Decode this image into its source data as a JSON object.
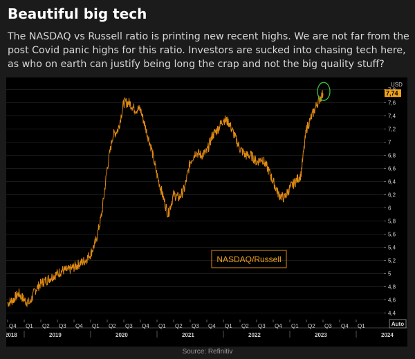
{
  "card": {
    "title": "Beautiful big tech",
    "body": "The NASDAQ vs Russell ratio is printing new recent highs. We are not far from the post Covid panic highs for this ratio. Investors are sucked into chasing tech here, as who on earth can justify being long the crap and not the big quality stuff?",
    "source": "Source: Refinitiv"
  },
  "colors": {
    "line": "#e08a12",
    "price_box": "#f0a21a",
    "circle": "#3cc43c",
    "axis_text": "#d0d0d0",
    "background": "#000000"
  },
  "chart_data": {
    "type": "line",
    "title": "",
    "currency_label": "USD",
    "scale_label": "Auto",
    "ylim": [
      4.3,
      7.9
    ],
    "y_ticks": [
      4.4,
      4.6,
      4.8,
      5,
      5.2,
      5.4,
      5.6,
      5.8,
      6,
      6.2,
      6.4,
      6.6,
      6.8,
      7,
      7.2,
      7.4,
      7.6,
      7.8
    ],
    "y_tick_labels": [
      "4,4",
      "4,6",
      "4,8",
      "5",
      "5,2",
      "5,4",
      "5,6",
      "5,8",
      "6",
      "6,2",
      "6,4",
      "6,6",
      "6,8",
      "7",
      "7,2",
      "7,4",
      "7,6",
      "7,8"
    ],
    "last_value": 7.74,
    "last_value_label": "7,74",
    "quarter_ticks": [
      "Q4",
      "Q1",
      "Q2",
      "Q3",
      "Q4",
      "Q1",
      "Q2",
      "Q3",
      "Q4",
      "Q1",
      "Q2",
      "Q3",
      "Q4",
      "Q1",
      "Q2",
      "Q3",
      "Q4",
      "Q1",
      "Q2",
      "Q3",
      "Q4",
      "Q1"
    ],
    "year_ticks": [
      "2018",
      "2019",
      "2020",
      "2021",
      "2022",
      "2023",
      "2024"
    ],
    "series": [
      {
        "name": "NASDAQ/Russell",
        "points": [
          [
            "2018-10",
            4.55
          ],
          [
            "2018-11",
            4.6
          ],
          [
            "2018-12",
            4.7
          ],
          [
            "2019-01",
            4.6
          ],
          [
            "2019-02",
            4.55
          ],
          [
            "2019-03",
            4.75
          ],
          [
            "2019-04",
            4.85
          ],
          [
            "2019-05",
            4.9
          ],
          [
            "2019-06",
            4.95
          ],
          [
            "2019-07",
            5.0
          ],
          [
            "2019-08",
            5.05
          ],
          [
            "2019-09",
            5.05
          ],
          [
            "2019-10",
            5.1
          ],
          [
            "2019-11",
            5.15
          ],
          [
            "2019-12",
            5.2
          ],
          [
            "2020-01",
            5.3
          ],
          [
            "2020-02",
            5.5
          ],
          [
            "2020-03",
            5.9
          ],
          [
            "2020-04",
            6.6
          ],
          [
            "2020-05",
            7.1
          ],
          [
            "2020-06",
            7.2
          ],
          [
            "2020-07",
            7.6
          ],
          [
            "2020-08",
            7.6
          ],
          [
            "2020-09",
            7.5
          ],
          [
            "2020-10",
            7.5
          ],
          [
            "2020-11",
            7.2
          ],
          [
            "2020-12",
            6.9
          ],
          [
            "2021-01",
            6.5
          ],
          [
            "2021-02",
            6.2
          ],
          [
            "2021-03",
            5.9
          ],
          [
            "2021-04",
            6.2
          ],
          [
            "2021-05",
            6.15
          ],
          [
            "2021-06",
            6.3
          ],
          [
            "2021-07",
            6.7
          ],
          [
            "2021-08",
            6.85
          ],
          [
            "2021-09",
            6.8
          ],
          [
            "2021-10",
            6.85
          ],
          [
            "2021-11",
            7.1
          ],
          [
            "2021-12",
            7.2
          ],
          [
            "2022-01",
            7.35
          ],
          [
            "2022-02",
            7.3
          ],
          [
            "2022-03",
            7.1
          ],
          [
            "2022-04",
            6.9
          ],
          [
            "2022-05",
            6.8
          ],
          [
            "2022-06",
            6.8
          ],
          [
            "2022-07",
            6.7
          ],
          [
            "2022-08",
            6.75
          ],
          [
            "2022-09",
            6.6
          ],
          [
            "2022-10",
            6.4
          ],
          [
            "2022-11",
            6.2
          ],
          [
            "2022-12",
            6.15
          ],
          [
            "2023-01",
            6.3
          ],
          [
            "2023-02",
            6.4
          ],
          [
            "2023-03",
            6.5
          ],
          [
            "2023-04",
            7.2
          ],
          [
            "2023-05",
            7.4
          ],
          [
            "2023-06",
            7.6
          ],
          [
            "2023-07",
            7.74
          ]
        ]
      }
    ]
  }
}
